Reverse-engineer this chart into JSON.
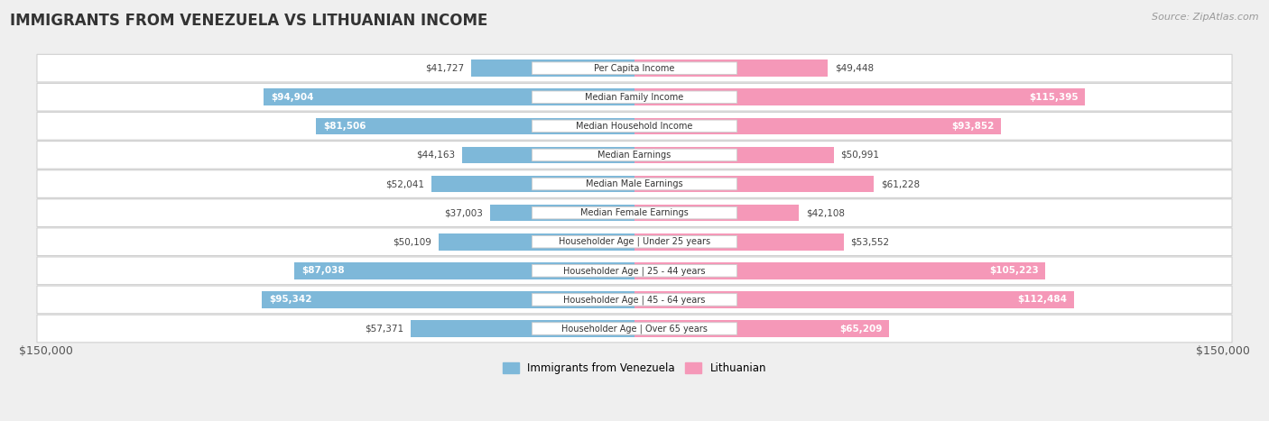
{
  "title": "IMMIGRANTS FROM VENEZUELA VS LITHUANIAN INCOME",
  "source": "Source: ZipAtlas.com",
  "categories": [
    "Per Capita Income",
    "Median Family Income",
    "Median Household Income",
    "Median Earnings",
    "Median Male Earnings",
    "Median Female Earnings",
    "Householder Age | Under 25 years",
    "Householder Age | 25 - 44 years",
    "Householder Age | 45 - 64 years",
    "Householder Age | Over 65 years"
  ],
  "venezuela_values": [
    41727,
    94904,
    81506,
    44163,
    52041,
    37003,
    50109,
    87038,
    95342,
    57371
  ],
  "lithuanian_values": [
    49448,
    115395,
    93852,
    50991,
    61228,
    42108,
    53552,
    105223,
    112484,
    65209
  ],
  "venezuela_color": "#7eb8d9",
  "venezuela_color_dark": "#5b9fc8",
  "lithuanian_color": "#f598b8",
  "lithuanian_color_dark": "#e8709a",
  "axis_max": 150000,
  "bg_color": "#efefef",
  "row_bg_color": "#ffffff",
  "legend_venezuela": "Immigrants from Venezuela",
  "legend_lithuanian": "Lithuanian",
  "xlabel_left": "$150,000",
  "xlabel_right": "$150,000",
  "inside_label_threshold": 62000,
  "label_fontsize": 7.5,
  "cat_fontsize": 7.0,
  "title_fontsize": 12,
  "source_fontsize": 8
}
